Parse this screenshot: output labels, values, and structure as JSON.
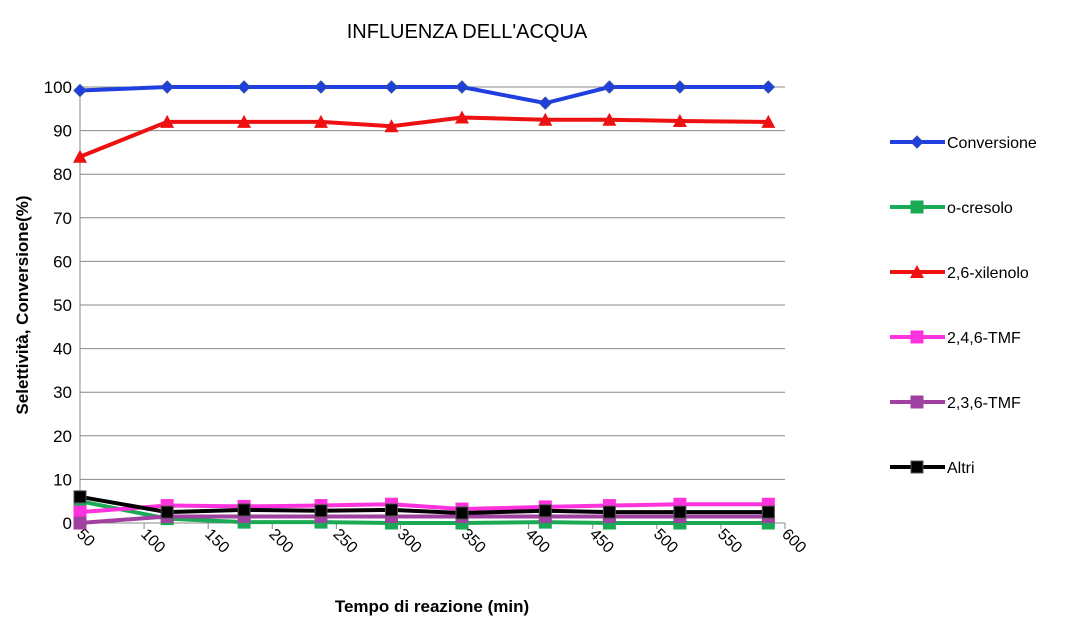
{
  "chart_data": {
    "type": "line",
    "title": "INFLUENZA DELL'ACQUA",
    "x_label": "Tempo di reazione (min)",
    "y_label": "Selettività, Conversione(%)",
    "x": [
      50,
      118,
      178,
      238,
      293,
      348,
      413,
      463,
      518,
      587
    ],
    "xlim": [
      50,
      600
    ],
    "xticks": [
      50,
      100,
      150,
      200,
      250,
      300,
      350,
      400,
      450,
      500,
      550,
      600
    ],
    "ylim": [
      0,
      100
    ],
    "yticks": [
      0,
      10,
      20,
      30,
      40,
      50,
      60,
      70,
      80,
      90,
      100
    ],
    "grid": true,
    "legend": "right",
    "series": [
      {
        "name": "Conversione",
        "color": "#1f3fe0",
        "marker": "diamond",
        "values": [
          99.2,
          100,
          100,
          100,
          100,
          100,
          96.3,
          100,
          100,
          100
        ]
      },
      {
        "name": "o-cresolo",
        "color": "#1aaa55",
        "marker": "square",
        "values": [
          5,
          1,
          0.2,
          0.2,
          0,
          0,
          0.2,
          0,
          0,
          0
        ]
      },
      {
        "name": "2,6-xilenolo",
        "color": "#ee1111",
        "marker": "triangle",
        "values": [
          84,
          92,
          92,
          92,
          91,
          93,
          92.5,
          92.5,
          92.2,
          92
        ]
      },
      {
        "name": "2,4,6-TMF",
        "color": "#ff33dd",
        "marker": "square",
        "values": [
          2.5,
          4,
          3.8,
          4,
          4.3,
          3.2,
          3.7,
          4,
          4.3,
          4.3
        ]
      },
      {
        "name": "2,3,6-TMF",
        "color": "#a040a0",
        "marker": "square",
        "values": [
          0,
          1.5,
          1.5,
          1.5,
          1.5,
          1.5,
          1.5,
          1.5,
          1.5,
          1.5
        ]
      },
      {
        "name": "Altri",
        "color": "#000000",
        "marker": "square",
        "values": [
          6,
          2.5,
          3,
          2.8,
          3,
          2.3,
          2.8,
          2.5,
          2.5,
          2.5
        ]
      }
    ]
  }
}
